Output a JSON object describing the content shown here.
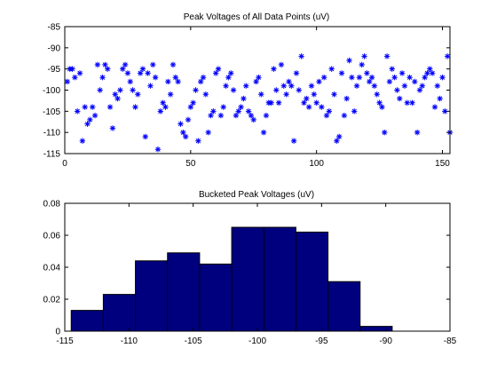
{
  "chart_data": [
    {
      "type": "scatter",
      "title": "Peak Voltages of All Data Points (uV)",
      "xlabel": "",
      "ylabel": "",
      "xlim": [
        0,
        153
      ],
      "ylim": [
        -115,
        -85
      ],
      "xticks": [
        "0",
        "50",
        "100",
        "150"
      ],
      "yticks": [
        "-85",
        "-90",
        "-95",
        "-100",
        "-105",
        "-110",
        "-115"
      ],
      "grid": false,
      "marker": "*",
      "color": "#0000ff",
      "series": [
        {
          "x": [
            1,
            2,
            3,
            4,
            5,
            6,
            7,
            8,
            9,
            10,
            11,
            12,
            13,
            14,
            15,
            16,
            17,
            18,
            19,
            20,
            21,
            22,
            23,
            24,
            25,
            26,
            27,
            28,
            29,
            30,
            31,
            32,
            33,
            34,
            35,
            36,
            37,
            38,
            39,
            40,
            41,
            42,
            43,
            44,
            45,
            46,
            47,
            48,
            49,
            50,
            51,
            52,
            53,
            54,
            55,
            56,
            57,
            58,
            59,
            60,
            61,
            62,
            63,
            64,
            65,
            66,
            67,
            68,
            69,
            70,
            71,
            72,
            73,
            74,
            75,
            76,
            77,
            78,
            79,
            80,
            81,
            82,
            83,
            84,
            85,
            86,
            87,
            88,
            89,
            90,
            91,
            92,
            93,
            94,
            95,
            96,
            97,
            98,
            99,
            100,
            101,
            102,
            103,
            104,
            105,
            106,
            107,
            108,
            109,
            110,
            111,
            112,
            113,
            114,
            115,
            116,
            117,
            118,
            119,
            120,
            121,
            122,
            123,
            124,
            125,
            126,
            127,
            128,
            129,
            130,
            131,
            132,
            133,
            134,
            135,
            136,
            137,
            138,
            139,
            140,
            141,
            142,
            143,
            144,
            145,
            146,
            147,
            148,
            149,
            150,
            151,
            152,
            153
          ],
          "y": [
            -98,
            -95,
            -95,
            -97,
            -105,
            -96,
            -112,
            -104,
            -108,
            -107,
            -104,
            -106,
            -94,
            -100,
            -97,
            -94,
            -95,
            -104,
            -109,
            -101,
            -102,
            -100,
            -95,
            -94,
            -96,
            -98,
            -100,
            -104,
            -101,
            -96,
            -95,
            -111,
            -96,
            -99,
            -94,
            -97,
            -114,
            -105,
            -103,
            -104,
            -98,
            -101,
            -94,
            -97,
            -98,
            -108,
            -110,
            -111,
            -107,
            -104,
            -103,
            -100,
            -112,
            -98,
            -97,
            -101,
            -110,
            -106,
            -105,
            -96,
            -95,
            -106,
            -104,
            -99,
            -97,
            -96,
            -100,
            -106,
            -105,
            -104,
            -102,
            -99,
            -105,
            -106,
            -107,
            -98,
            -97,
            -101,
            -110,
            -106,
            -103,
            -103,
            -95,
            -100,
            -103,
            -94,
            -99,
            -101,
            -98,
            -99,
            -112,
            -96,
            -100,
            -92,
            -103,
            -102,
            -104,
            -99,
            -101,
            -103,
            -98,
            -104,
            -97,
            -106,
            -105,
            -95,
            -101,
            -112,
            -111,
            -96,
            -106,
            -102,
            -93,
            -97,
            -105,
            -99,
            -97,
            -94,
            -92,
            -96,
            -98,
            -97,
            -99,
            -101,
            -103,
            -104,
            -110,
            -92,
            -98,
            -95,
            -97,
            -100,
            -102,
            -96,
            -99,
            -103,
            -97,
            -103,
            -98,
            -110,
            -100,
            -99,
            -97,
            -96,
            -95,
            -96,
            -104,
            -99,
            -102,
            -97,
            -105,
            -92,
            -110
          ]
        }
      ]
    },
    {
      "type": "bar",
      "title": "Bucketed Peak Voltages (uV)",
      "xlabel": "",
      "ylabel": "",
      "xlim": [
        -115,
        -85
      ],
      "ylim": [
        0,
        0.08
      ],
      "xticks": [
        "-115",
        "-110",
        "-105",
        "-100",
        "-95",
        "-90",
        "-85"
      ],
      "yticks": [
        "0",
        "0.02",
        "0.04",
        "0.06",
        "0.08"
      ],
      "grid": false,
      "color": "#00007f",
      "bins": [
        {
          "from": -114.5,
          "to": -112,
          "value": 0.013
        },
        {
          "from": -112,
          "to": -109.5,
          "value": 0.023
        },
        {
          "from": -109.5,
          "to": -107,
          "value": 0.044
        },
        {
          "from": -107,
          "to": -104.5,
          "value": 0.049
        },
        {
          "from": -104.5,
          "to": -102,
          "value": 0.042
        },
        {
          "from": -102,
          "to": -99.5,
          "value": 0.065
        },
        {
          "from": -99.5,
          "to": -97,
          "value": 0.065
        },
        {
          "from": -97,
          "to": -94.5,
          "value": 0.062
        },
        {
          "from": -94.5,
          "to": -92,
          "value": 0.031
        },
        {
          "from": -92,
          "to": -89.5,
          "value": 0.003
        }
      ]
    }
  ]
}
